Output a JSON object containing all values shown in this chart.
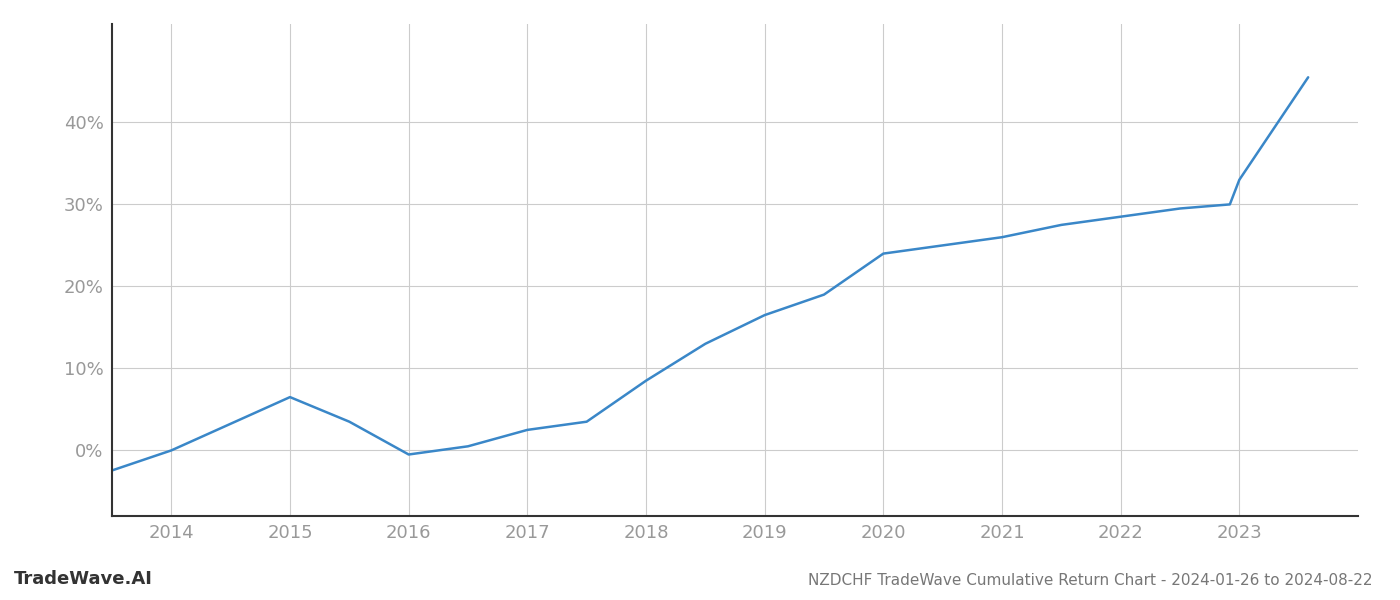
{
  "x_values": [
    2013.08,
    2014.0,
    2015.0,
    2015.5,
    2016.0,
    2016.5,
    2017.0,
    2017.5,
    2018.0,
    2018.5,
    2019.0,
    2019.5,
    2020.0,
    2020.5,
    2021.0,
    2021.5,
    2022.0,
    2022.5,
    2022.92,
    2023.0,
    2023.58
  ],
  "y_values": [
    -4.5,
    0.0,
    6.5,
    3.5,
    -0.5,
    0.5,
    2.5,
    3.5,
    8.5,
    13.0,
    16.5,
    19.0,
    24.0,
    25.0,
    26.0,
    27.5,
    28.5,
    29.5,
    30.0,
    33.0,
    45.5
  ],
  "line_color": "#3a87c8",
  "line_width": 1.8,
  "background_color": "#ffffff",
  "grid_color": "#cccccc",
  "title": "NZDCHF TradeWave Cumulative Return Chart - 2024-01-26 to 2024-08-22",
  "watermark": "TradeWave.AI",
  "xlim": [
    2013.5,
    2024.0
  ],
  "ylim": [
    -8,
    52
  ],
  "xtick_labels": [
    "2014",
    "2015",
    "2016",
    "2017",
    "2018",
    "2019",
    "2020",
    "2021",
    "2022",
    "2023"
  ],
  "xtick_positions": [
    2014,
    2015,
    2016,
    2017,
    2018,
    2019,
    2020,
    2021,
    2022,
    2023
  ],
  "ytick_positions": [
    0,
    10,
    20,
    30,
    40
  ],
  "ytick_labels": [
    "0%",
    "10%",
    "20%",
    "30%",
    "40%"
  ],
  "title_fontsize": 11,
  "tick_fontsize": 13,
  "watermark_fontsize": 13,
  "title_color": "#777777",
  "tick_color": "#999999",
  "watermark_color": "#333333",
  "spine_color": "#999999",
  "left_spine_color": "#333333"
}
